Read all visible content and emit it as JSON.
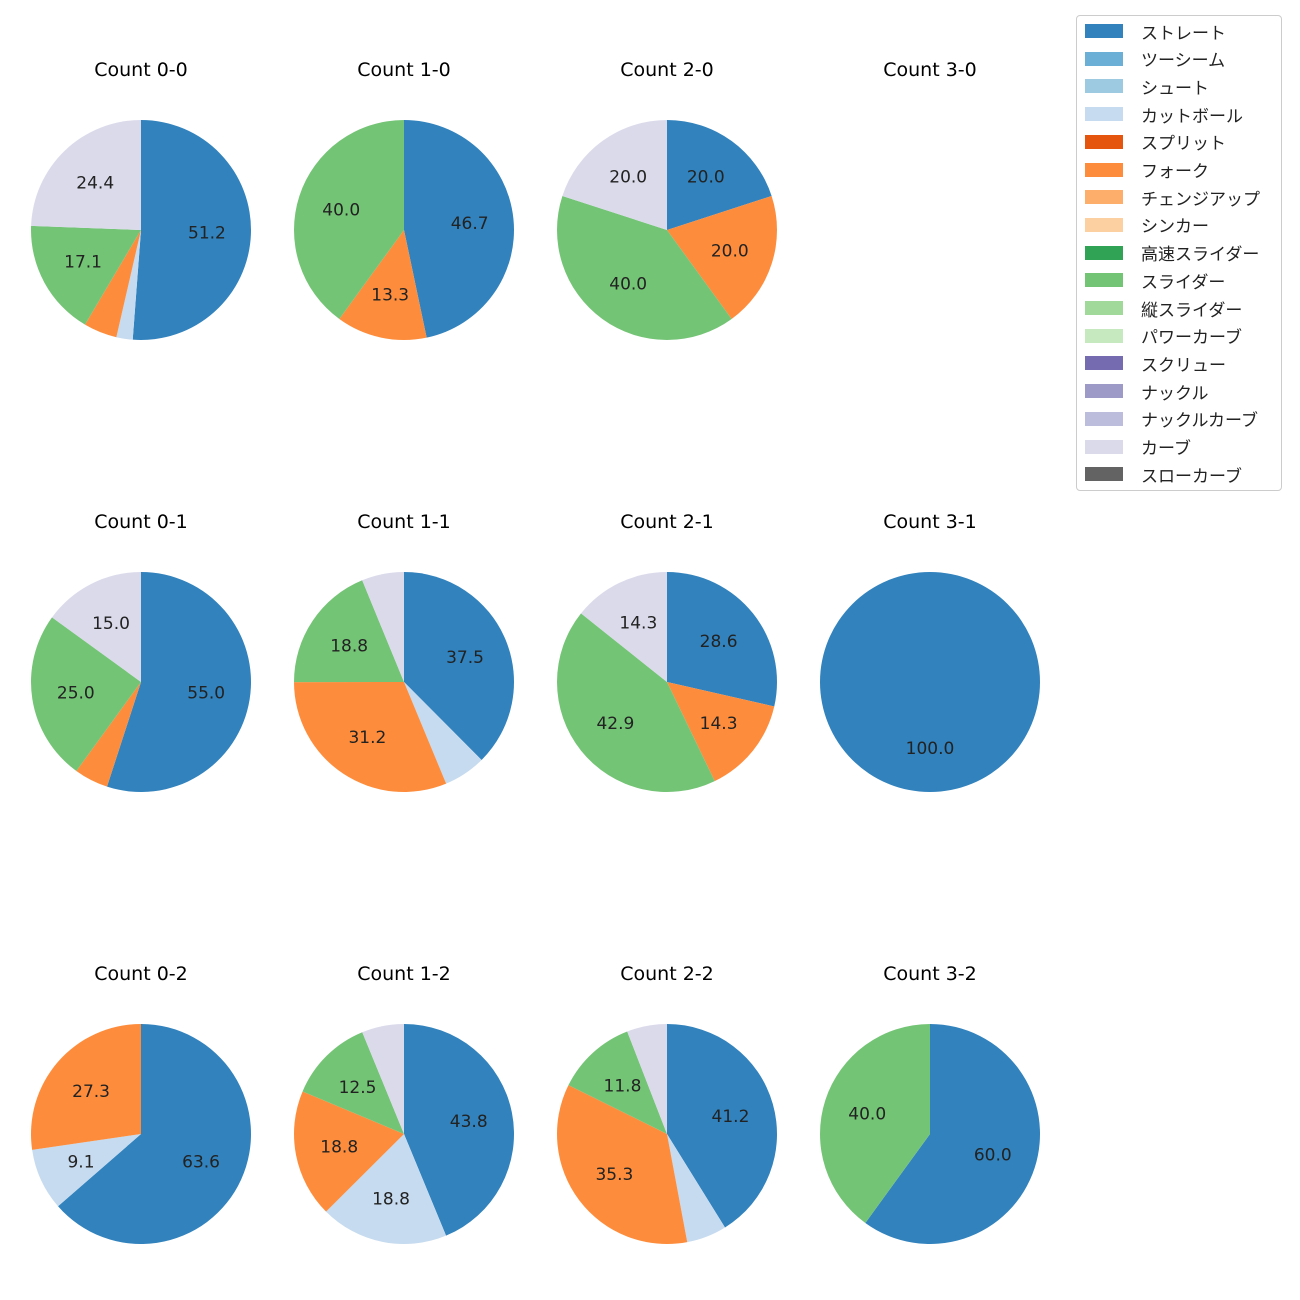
{
  "colors": {
    "ストレート": "#3182bd",
    "ツーシーム": "#6baed6",
    "シュート": "#9ecae1",
    "カットボール": "#c6dbef",
    "スプリット": "#e6550d",
    "フォーク": "#fd8d3c",
    "チェンジアップ": "#fdae6b",
    "シンカー": "#fdd0a2",
    "高速スライダー": "#31a354",
    "スライダー": "#74c476",
    "縦スライダー": "#a1d99b",
    "パワーカーブ": "#c7e9c0",
    "スクリュー": "#756bb1",
    "ナックル": "#9e9ac8",
    "ナックルカーブ": "#bcbddc",
    "カーブ": "#dadaeb",
    "スローカーブ": "#636363"
  },
  "legend": [
    "ストレート",
    "ツーシーム",
    "シュート",
    "カットボール",
    "スプリット",
    "フォーク",
    "チェンジアップ",
    "シンカー",
    "高速スライダー",
    "スライダー",
    "縦スライダー",
    "パワーカーブ",
    "スクリュー",
    "ナックル",
    "ナックルカーブ",
    "カーブ",
    "スローカーブ"
  ],
  "chart_data": [
    {
      "type": "pie",
      "title": "Count 0-0",
      "slices": [
        {
          "label": "ストレート",
          "value": 51.2
        },
        {
          "label": "カットボール",
          "value": 2.4
        },
        {
          "label": "フォーク",
          "value": 4.9
        },
        {
          "label": "スライダー",
          "value": 17.1
        },
        {
          "label": "カーブ",
          "value": 24.4
        }
      ],
      "value_labels": [
        "51.2",
        "",
        "",
        "17.1",
        "24.4"
      ]
    },
    {
      "type": "pie",
      "title": "Count 1-0",
      "slices": [
        {
          "label": "ストレート",
          "value": 46.7
        },
        {
          "label": "フォーク",
          "value": 13.3
        },
        {
          "label": "スライダー",
          "value": 40.0
        }
      ],
      "value_labels": [
        "46.7",
        "13.3",
        "40.0"
      ]
    },
    {
      "type": "pie",
      "title": "Count 2-0",
      "slices": [
        {
          "label": "ストレート",
          "value": 20.0
        },
        {
          "label": "フォーク",
          "value": 20.0
        },
        {
          "label": "スライダー",
          "value": 40.0
        },
        {
          "label": "カーブ",
          "value": 20.0
        }
      ],
      "value_labels": [
        "20.0",
        "20.0",
        "40.0",
        "20.0"
      ]
    },
    {
      "type": "pie",
      "title": "Count 3-0",
      "slices": [],
      "value_labels": []
    },
    {
      "type": "pie",
      "title": "Count 0-1",
      "slices": [
        {
          "label": "ストレート",
          "value": 55.0
        },
        {
          "label": "フォーク",
          "value": 5.0
        },
        {
          "label": "スライダー",
          "value": 25.0
        },
        {
          "label": "カーブ",
          "value": 15.0
        }
      ],
      "value_labels": [
        "55.0",
        "",
        "25.0",
        "15.0"
      ]
    },
    {
      "type": "pie",
      "title": "Count 1-1",
      "slices": [
        {
          "label": "ストレート",
          "value": 37.5
        },
        {
          "label": "カットボール",
          "value": 6.2
        },
        {
          "label": "フォーク",
          "value": 31.2
        },
        {
          "label": "スライダー",
          "value": 18.8
        },
        {
          "label": "カーブ",
          "value": 6.2
        }
      ],
      "value_labels": [
        "37.5",
        "",
        "31.2",
        "18.8",
        ""
      ]
    },
    {
      "type": "pie",
      "title": "Count 2-1",
      "slices": [
        {
          "label": "ストレート",
          "value": 28.6
        },
        {
          "label": "フォーク",
          "value": 14.3
        },
        {
          "label": "スライダー",
          "value": 42.9
        },
        {
          "label": "カーブ",
          "value": 14.3
        }
      ],
      "value_labels": [
        "28.6",
        "14.3",
        "42.9",
        "14.3"
      ]
    },
    {
      "type": "pie",
      "title": "Count 3-1",
      "slices": [
        {
          "label": "ストレート",
          "value": 100.0
        }
      ],
      "value_labels": [
        "100.0"
      ]
    },
    {
      "type": "pie",
      "title": "Count 0-2",
      "slices": [
        {
          "label": "ストレート",
          "value": 63.6
        },
        {
          "label": "カットボール",
          "value": 9.1
        },
        {
          "label": "フォーク",
          "value": 27.3
        }
      ],
      "value_labels": [
        "63.6",
        "9.1",
        "27.3"
      ]
    },
    {
      "type": "pie",
      "title": "Count 1-2",
      "slices": [
        {
          "label": "ストレート",
          "value": 43.8
        },
        {
          "label": "カットボール",
          "value": 18.8
        },
        {
          "label": "フォーク",
          "value": 18.8
        },
        {
          "label": "スライダー",
          "value": 12.5
        },
        {
          "label": "カーブ",
          "value": 6.2
        }
      ],
      "value_labels": [
        "43.8",
        "18.8",
        "18.8",
        "12.5",
        ""
      ]
    },
    {
      "type": "pie",
      "title": "Count 2-2",
      "slices": [
        {
          "label": "ストレート",
          "value": 41.2
        },
        {
          "label": "カットボール",
          "value": 5.9
        },
        {
          "label": "フォーク",
          "value": 35.3
        },
        {
          "label": "スライダー",
          "value": 11.8
        },
        {
          "label": "カーブ",
          "value": 5.9
        }
      ],
      "value_labels": [
        "41.2",
        "",
        "35.3",
        "11.8",
        ""
      ]
    },
    {
      "type": "pie",
      "title": "Count 3-2",
      "slices": [
        {
          "label": "ストレート",
          "value": 60.0
        },
        {
          "label": "スライダー",
          "value": 40.0
        }
      ],
      "value_labels": [
        "60.0",
        "40.0"
      ]
    }
  ]
}
